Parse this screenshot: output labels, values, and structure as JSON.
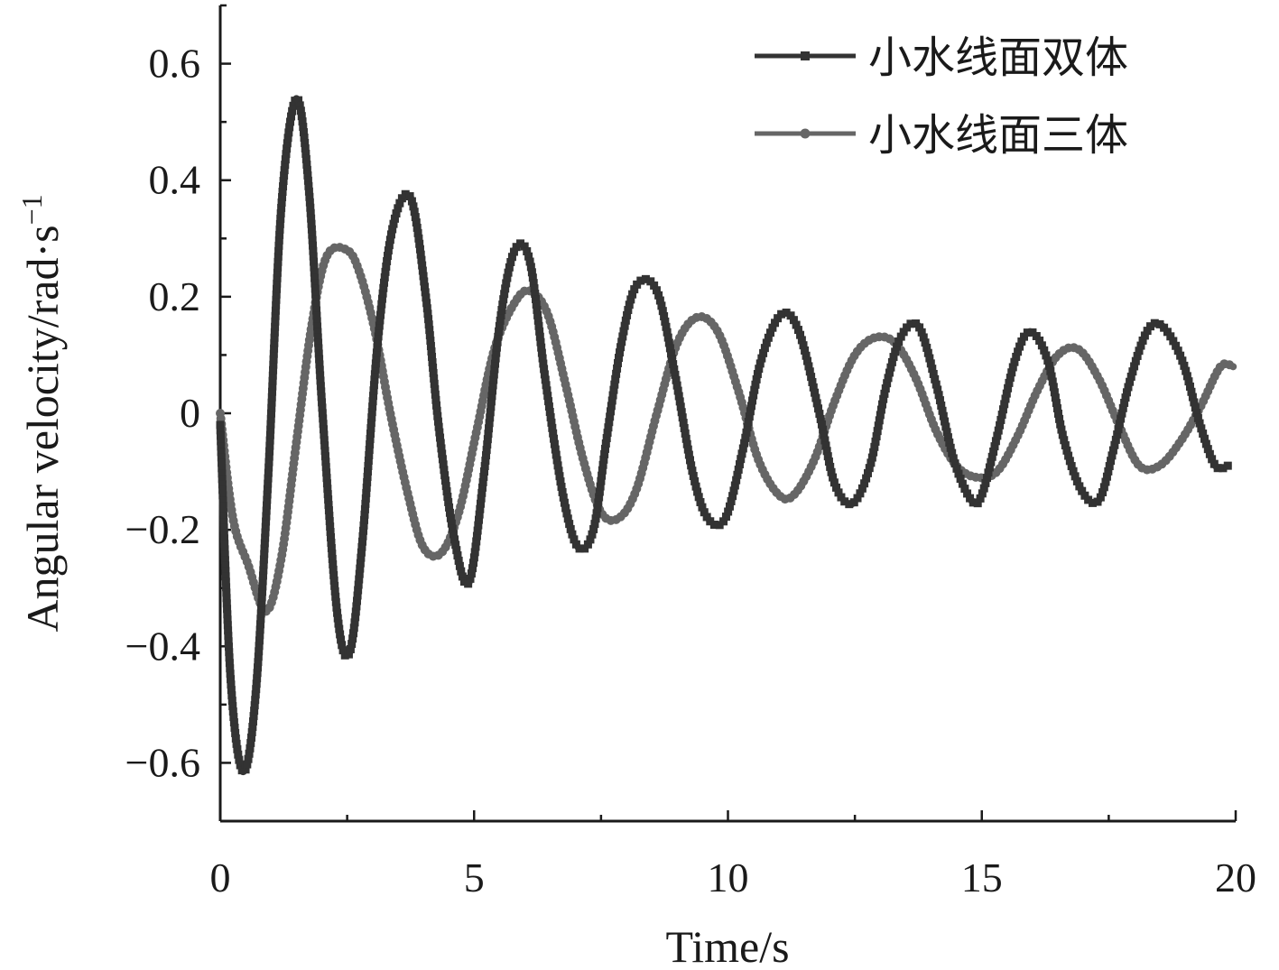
{
  "chart_data": {
    "type": "line",
    "title": "",
    "xlabel": "Time/s",
    "ylabel": "Angular velocity/rad·s",
    "ylabel_superscript": "−1",
    "xlim": [
      0,
      20
    ],
    "ylim": [
      -0.7,
      0.7
    ],
    "x_ticks": [
      {
        "value": 0,
        "label": "0"
      },
      {
        "value": 5,
        "label": "5"
      },
      {
        "value": 10,
        "label": "10"
      },
      {
        "value": 15,
        "label": "15"
      },
      {
        "value": 20,
        "label": "20"
      }
    ],
    "y_ticks": [
      {
        "value": 0.6,
        "label": "0.6"
      },
      {
        "value": 0.4,
        "label": "0.4"
      },
      {
        "value": 0.2,
        "label": "0.2"
      },
      {
        "value": 0,
        "label": "0"
      },
      {
        "value": -0.2,
        "label": "−0.2"
      },
      {
        "value": -0.4,
        "label": "−0.4"
      },
      {
        "value": -0.6,
        "label": "−0.6"
      }
    ],
    "grid": false,
    "legend_position": "top-right",
    "series": [
      {
        "name": "小水线面双体",
        "color": "#333333",
        "marker": "square",
        "x": [
          0,
          0.2,
          0.45,
          0.7,
          0.95,
          1.2,
          1.5,
          1.75,
          2.0,
          2.3,
          2.55,
          2.8,
          3.1,
          3.4,
          3.75,
          4.05,
          4.3,
          4.6,
          4.9,
          5.2,
          5.5,
          5.8,
          6.1,
          6.4,
          6.75,
          7.05,
          7.35,
          7.6,
          7.9,
          8.2,
          8.6,
          8.95,
          9.3,
          9.6,
          9.95,
          10.3,
          10.65,
          11.05,
          11.4,
          11.8,
          12.1,
          12.45,
          12.8,
          13.1,
          13.4,
          13.75,
          14.1,
          14.45,
          14.8,
          15.0,
          15.3,
          15.65,
          15.95,
          16.3,
          16.6,
          16.95,
          17.3,
          17.6,
          17.9,
          18.25,
          18.55,
          18.95,
          19.3,
          19.6,
          19.85
        ],
        "y": [
          -0.02,
          -0.45,
          -0.615,
          -0.48,
          -0.1,
          0.35,
          0.54,
          0.38,
          0.02,
          -0.34,
          -0.41,
          -0.22,
          0.12,
          0.32,
          0.37,
          0.2,
          -0.02,
          -0.21,
          -0.29,
          -0.1,
          0.15,
          0.28,
          0.26,
          0.06,
          -0.14,
          -0.23,
          -0.2,
          -0.05,
          0.12,
          0.22,
          0.21,
          0.07,
          -0.1,
          -0.18,
          -0.18,
          -0.06,
          0.09,
          0.17,
          0.14,
          0.0,
          -0.12,
          -0.155,
          -0.09,
          0.04,
          0.13,
          0.15,
          0.05,
          -0.08,
          -0.15,
          -0.14,
          -0.04,
          0.09,
          0.14,
          0.09,
          -0.04,
          -0.13,
          -0.15,
          -0.06,
          0.05,
          0.14,
          0.15,
          0.09,
          -0.02,
          -0.09,
          -0.09
        ]
      },
      {
        "name": "小水线面三体",
        "color": "#666666",
        "marker": "circle",
        "x": [
          0,
          0.25,
          0.55,
          0.9,
          1.2,
          1.5,
          1.8,
          2.1,
          2.5,
          2.75,
          3.05,
          3.35,
          3.7,
          4.0,
          4.35,
          4.7,
          5.05,
          5.4,
          5.8,
          6.1,
          6.45,
          6.8,
          7.15,
          7.5,
          7.85,
          8.2,
          8.6,
          9.0,
          9.4,
          9.8,
          10.2,
          10.6,
          11.0,
          11.3,
          11.7,
          12.1,
          12.5,
          12.9,
          13.3,
          13.7,
          14.1,
          14.5,
          14.9,
          15.3,
          15.7,
          16.1,
          16.5,
          16.9,
          17.3,
          17.7,
          18.1,
          18.5,
          18.9,
          19.3,
          19.7,
          19.95
        ],
        "y": [
          0.0,
          -0.18,
          -0.26,
          -0.34,
          -0.25,
          -0.05,
          0.15,
          0.27,
          0.28,
          0.24,
          0.14,
          0.0,
          -0.14,
          -0.23,
          -0.24,
          -0.17,
          -0.03,
          0.11,
          0.19,
          0.21,
          0.17,
          0.05,
          -0.08,
          -0.17,
          -0.18,
          -0.13,
          0.0,
          0.12,
          0.165,
          0.14,
          0.04,
          -0.08,
          -0.14,
          -0.14,
          -0.08,
          0.02,
          0.1,
          0.13,
          0.12,
          0.06,
          -0.03,
          -0.09,
          -0.11,
          -0.1,
          -0.04,
          0.04,
          0.1,
          0.11,
          0.06,
          -0.02,
          -0.09,
          -0.09,
          -0.05,
          0.01,
          0.08,
          0.08
        ]
      }
    ]
  }
}
